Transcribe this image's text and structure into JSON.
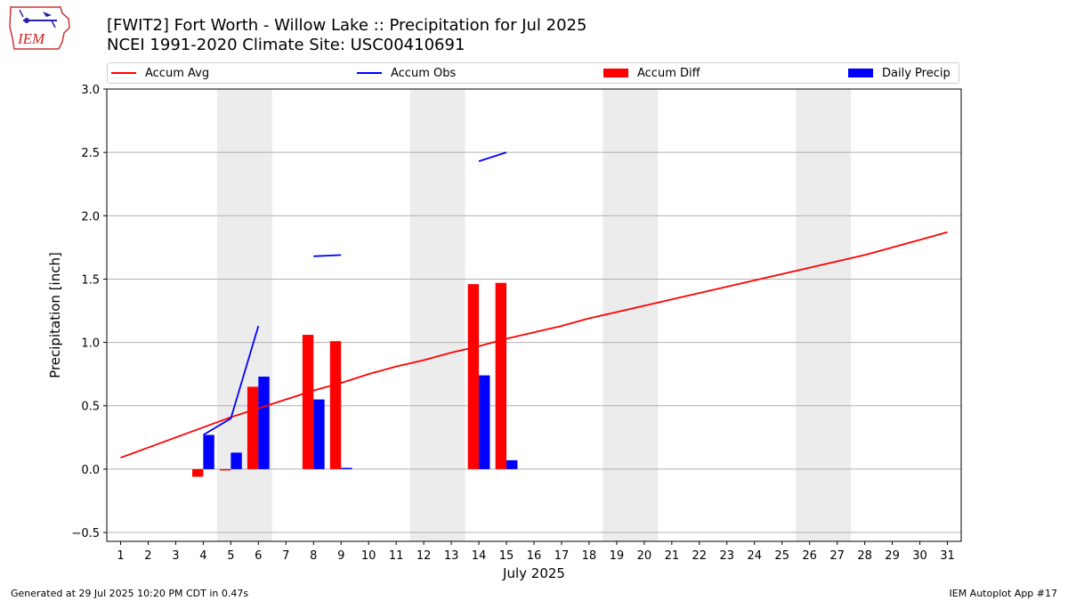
{
  "header": {
    "title": "[FWIT2] Fort Worth - Willow Lake :: Precipitation for Jul 2025",
    "subtitle": "NCEI 1991-2020 Climate Site: USC00410691"
  },
  "logo": {
    "text": "IEM"
  },
  "footer": {
    "generated": "Generated at 29 Jul 2025 10:20 PM CDT in 0.47s",
    "app": "IEM Autoplot App #17"
  },
  "colors": {
    "avg": "#ff0000",
    "obs": "#0000ff",
    "diff": "#ff0000",
    "daily": "#0000ff",
    "weekend_shade": "#ececec",
    "grid": "#b0b0b0"
  },
  "legend": [
    {
      "label": "Accum Avg",
      "kind": "line",
      "color": "#ff0000"
    },
    {
      "label": "Accum Obs",
      "kind": "line",
      "color": "#0000ff"
    },
    {
      "label": "Accum Diff",
      "kind": "patch",
      "color": "#ff0000"
    },
    {
      "label": "Daily Precip",
      "kind": "patch",
      "color": "#0000ff"
    }
  ],
  "chart_data": {
    "type": "bar",
    "ylabel": "Precipitation [inch]",
    "xlabel": "July 2025",
    "ylim": [
      -0.57,
      3.0
    ],
    "yticks": [
      "−0.5",
      "0.0",
      "0.5",
      "1.0",
      "1.5",
      "2.0",
      "2.5",
      "3.0"
    ],
    "ytick_values": [
      -0.5,
      0.0,
      0.5,
      1.0,
      1.5,
      2.0,
      2.5,
      3.0
    ],
    "days": [
      "1",
      "2",
      "3",
      "4",
      "5",
      "6",
      "7",
      "8",
      "9",
      "10",
      "11",
      "12",
      "13",
      "14",
      "15",
      "16",
      "17",
      "18",
      "19",
      "20",
      "21",
      "22",
      "23",
      "24",
      "25",
      "26",
      "27",
      "28",
      "29",
      "30",
      "31"
    ],
    "grid": true,
    "legend_position": "top",
    "weekend_shading": [
      [
        5,
        6
      ],
      [
        12,
        13
      ],
      [
        19,
        20
      ],
      [
        26,
        27
      ]
    ],
    "series": [
      {
        "name": "Accum Avg",
        "kind": "line",
        "x": [
          1,
          2,
          3,
          4,
          5,
          6,
          7,
          8,
          9,
          10,
          11,
          12,
          13,
          14,
          15,
          16,
          17,
          18,
          19,
          20,
          21,
          22,
          23,
          24,
          25,
          26,
          27,
          28,
          29,
          30,
          31
        ],
        "values": [
          0.09,
          0.17,
          0.25,
          0.33,
          0.41,
          0.48,
          0.55,
          0.62,
          0.68,
          0.75,
          0.81,
          0.86,
          0.92,
          0.97,
          1.03,
          1.08,
          1.13,
          1.19,
          1.24,
          1.29,
          1.34,
          1.39,
          1.44,
          1.49,
          1.54,
          1.59,
          1.64,
          1.69,
          1.75,
          1.81,
          1.87
        ]
      },
      {
        "name": "Accum Obs",
        "kind": "line",
        "segments": [
          {
            "x": [
              4,
              5,
              6
            ],
            "values": [
              0.27,
              0.4,
              1.13
            ]
          },
          {
            "x": [
              8,
              9
            ],
            "values": [
              1.68,
              1.69
            ]
          },
          {
            "x": [
              14,
              15
            ],
            "values": [
              2.43,
              2.5
            ]
          }
        ]
      },
      {
        "name": "Accum Diff",
        "kind": "bar",
        "x": [
          4,
          5,
          6,
          8,
          9,
          14,
          15
        ],
        "values": [
          -0.06,
          -0.01,
          0.65,
          1.06,
          1.01,
          1.46,
          1.47
        ]
      },
      {
        "name": "Daily Precip",
        "kind": "bar",
        "x": [
          4,
          5,
          6,
          8,
          9,
          14,
          15
        ],
        "values": [
          0.27,
          0.13,
          0.73,
          0.55,
          0.01,
          0.74,
          0.07
        ]
      }
    ]
  }
}
